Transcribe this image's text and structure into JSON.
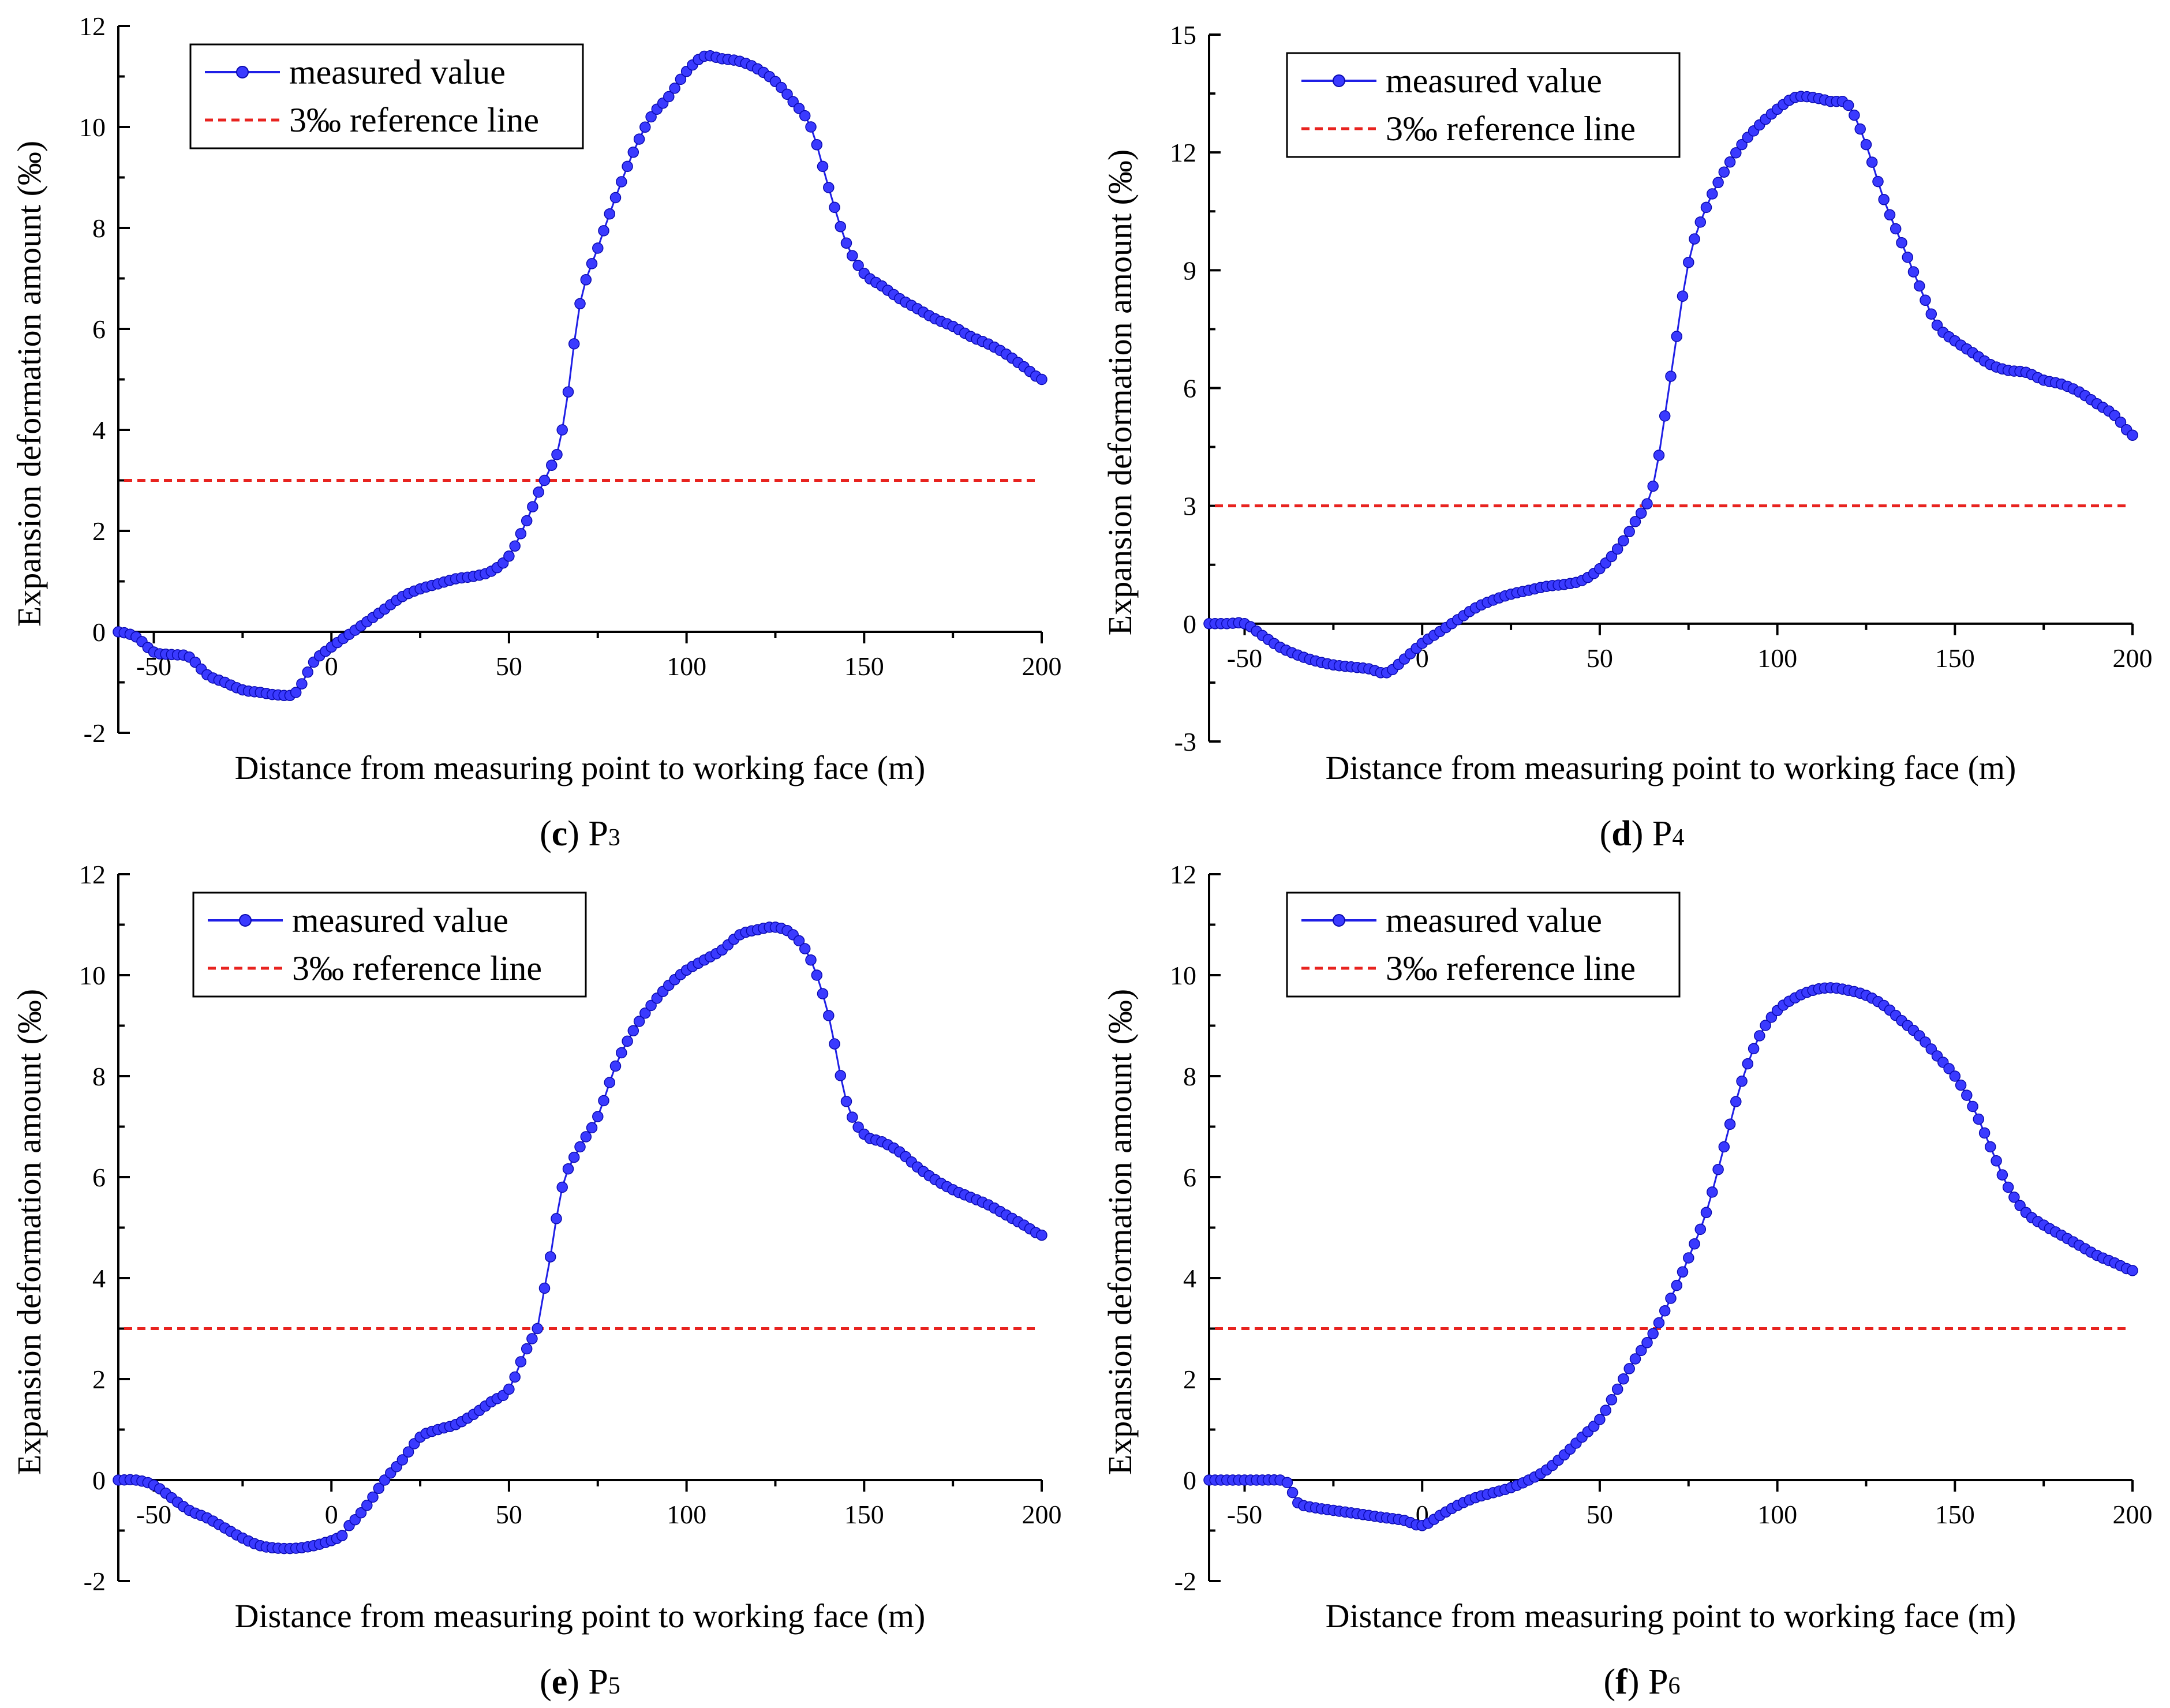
{
  "colors": {
    "series": "#1f1fe6",
    "marker": "#3a3aff",
    "marker_edge": "#0a0ab0",
    "reference": "#e8231f",
    "axis": "#000000"
  },
  "chart_data": [
    {
      "type": "line",
      "panel_letter": "c",
      "panel_point": "P",
      "panel_sub": "3",
      "xlabel": "Distance from measuring point to working face (m)",
      "ylabel": "Expansion deformation amount (‰)",
      "xlim": [
        -60,
        200
      ],
      "ylim": [
        -2,
        12
      ],
      "xticks": [
        -50,
        0,
        50,
        100,
        150,
        200
      ],
      "yticks": [
        -2,
        0,
        2,
        4,
        6,
        8,
        10,
        12
      ],
      "legend_position": "top-left",
      "series": [
        {
          "name": "measured value",
          "style": "line-marker",
          "x": [
            -60,
            -55,
            -50,
            -45,
            -40,
            -35,
            -30,
            -25,
            -20,
            -15,
            -10,
            -5,
            0,
            5,
            10,
            15,
            20,
            25,
            30,
            35,
            40,
            45,
            50,
            55,
            60,
            62,
            65,
            70,
            75,
            80,
            85,
            90,
            95,
            100,
            105,
            110,
            115,
            120,
            125,
            130,
            135,
            140,
            145,
            150,
            155,
            160,
            165,
            170,
            175,
            180,
            185,
            190,
            195,
            200
          ],
          "y": [
            0,
            -0.1,
            -0.4,
            -0.45,
            -0.5,
            -0.85,
            -1.0,
            -1.15,
            -1.2,
            -1.25,
            -1.2,
            -0.6,
            -0.3,
            -0.05,
            0.2,
            0.45,
            0.7,
            0.85,
            0.95,
            1.05,
            1.1,
            1.2,
            1.5,
            2.2,
            3.0,
            3.3,
            4.0,
            6.5,
            7.6,
            8.6,
            9.5,
            10.2,
            10.6,
            11.1,
            11.4,
            11.35,
            11.3,
            11.15,
            10.9,
            10.5,
            10.0,
            8.8,
            7.7,
            7.1,
            6.85,
            6.6,
            6.4,
            6.2,
            6.05,
            5.85,
            5.7,
            5.5,
            5.25,
            5.0
          ]
        },
        {
          "name": "3‰ reference line",
          "style": "dashed",
          "value": 3
        }
      ]
    },
    {
      "type": "line",
      "panel_letter": "d",
      "panel_point": "P",
      "panel_sub": "4",
      "xlabel": "Distance from measuring point to working face (m)",
      "ylabel": "Expansion deformation amount (‰)",
      "xlim": [
        -60,
        200
      ],
      "ylim": [
        -3,
        15
      ],
      "xticks": [
        -50,
        0,
        50,
        100,
        150,
        200
      ],
      "yticks": [
        -3,
        0,
        3,
        6,
        9,
        12,
        15
      ],
      "legend_position": "top-left",
      "series": [
        {
          "name": "measured value",
          "style": "line-marker",
          "x": [
            -60,
            -55,
            -50,
            -45,
            -40,
            -35,
            -30,
            -25,
            -20,
            -15,
            -10,
            -5,
            0,
            5,
            10,
            15,
            20,
            25,
            30,
            35,
            40,
            45,
            50,
            55,
            60,
            65,
            70,
            75,
            80,
            85,
            90,
            95,
            100,
            105,
            110,
            115,
            120,
            125,
            130,
            135,
            140,
            145,
            150,
            155,
            160,
            165,
            170,
            175,
            180,
            185,
            190,
            195,
            200
          ],
          "y": [
            0,
            0,
            0,
            -0.3,
            -0.6,
            -0.8,
            -0.95,
            -1.05,
            -1.1,
            -1.15,
            -1.25,
            -0.9,
            -0.5,
            -0.2,
            0.1,
            0.4,
            0.6,
            0.75,
            0.85,
            0.95,
            1.0,
            1.1,
            1.4,
            1.9,
            2.6,
            3.5,
            6.3,
            9.2,
            10.6,
            11.5,
            12.2,
            12.7,
            13.1,
            13.4,
            13.4,
            13.3,
            13.2,
            12.2,
            10.8,
            9.7,
            8.6,
            7.6,
            7.2,
            6.9,
            6.6,
            6.45,
            6.4,
            6.2,
            6.1,
            5.9,
            5.6,
            5.3,
            4.8
          ]
        },
        {
          "name": "3‰ reference line",
          "style": "dashed",
          "value": 3
        }
      ]
    },
    {
      "type": "line",
      "panel_letter": "e",
      "panel_point": "P",
      "panel_sub": "5",
      "xlabel": "Distance from measuring point to working face (m)",
      "ylabel": "Expansion deformation amount (‰)",
      "xlim": [
        -60,
        200
      ],
      "ylim": [
        -2,
        12
      ],
      "xticks": [
        -50,
        0,
        50,
        100,
        150,
        200
      ],
      "yticks": [
        -2,
        0,
        2,
        4,
        6,
        8,
        10,
        12
      ],
      "legend_position": "top-left",
      "series": [
        {
          "name": "measured value",
          "style": "line-marker",
          "x": [
            -60,
            -55,
            -50,
            -45,
            -40,
            -35,
            -30,
            -25,
            -20,
            -15,
            -10,
            -5,
            0,
            3,
            5,
            10,
            15,
            20,
            25,
            30,
            35,
            40,
            45,
            50,
            55,
            58,
            60,
            65,
            70,
            75,
            80,
            85,
            90,
            95,
            100,
            105,
            110,
            115,
            120,
            125,
            130,
            135,
            140,
            145,
            150,
            155,
            160,
            165,
            170,
            175,
            180,
            185,
            190,
            195,
            200
          ],
          "y": [
            0,
            0,
            -0.1,
            -0.35,
            -0.6,
            -0.75,
            -0.95,
            -1.15,
            -1.3,
            -1.35,
            -1.35,
            -1.3,
            -1.2,
            -1.1,
            -0.9,
            -0.5,
            0,
            0.4,
            0.85,
            1.0,
            1.1,
            1.3,
            1.55,
            1.8,
            2.6,
            3.0,
            3.8,
            5.8,
            6.6,
            7.2,
            8.2,
            8.9,
            9.4,
            9.8,
            10.1,
            10.3,
            10.5,
            10.8,
            10.9,
            10.95,
            10.8,
            10.3,
            9.2,
            7.5,
            6.85,
            6.7,
            6.5,
            6.2,
            5.95,
            5.75,
            5.6,
            5.45,
            5.25,
            5.05,
            4.85
          ]
        },
        {
          "name": "3‰ reference line",
          "style": "dashed",
          "value": 3
        }
      ]
    },
    {
      "type": "line",
      "panel_letter": "f",
      "panel_point": "P",
      "panel_sub": "6",
      "xlabel": "Distance from measuring point to working face (m)",
      "ylabel": "Expansion deformation amount (‰)",
      "xlim": [
        -60,
        200
      ],
      "ylim": [
        -2,
        12
      ],
      "xticks": [
        -50,
        0,
        50,
        100,
        150,
        200
      ],
      "yticks": [
        -2,
        0,
        2,
        4,
        6,
        8,
        10,
        12
      ],
      "legend_position": "top-left",
      "series": [
        {
          "name": "measured value",
          "style": "line-marker",
          "x": [
            -60,
            -55,
            -50,
            -45,
            -40,
            -38,
            -35,
            -30,
            -25,
            -20,
            -15,
            -10,
            -5,
            0,
            5,
            10,
            15,
            20,
            25,
            30,
            35,
            40,
            45,
            50,
            55,
            60,
            65,
            70,
            75,
            80,
            85,
            90,
            95,
            100,
            105,
            110,
            115,
            120,
            125,
            130,
            135,
            140,
            145,
            150,
            155,
            160,
            165,
            170,
            175,
            180,
            185,
            190,
            195,
            200
          ],
          "y": [
            0,
            0,
            0,
            0,
            0,
            -0.05,
            -0.45,
            -0.55,
            -0.6,
            -0.65,
            -0.7,
            -0.75,
            -0.8,
            -0.9,
            -0.7,
            -0.5,
            -0.35,
            -0.25,
            -0.15,
            0,
            0.2,
            0.5,
            0.85,
            1.2,
            1.8,
            2.4,
            2.9,
            3.6,
            4.4,
            5.3,
            6.6,
            7.9,
            8.8,
            9.3,
            9.55,
            9.7,
            9.75,
            9.7,
            9.6,
            9.4,
            9.1,
            8.8,
            8.4,
            8.0,
            7.4,
            6.6,
            5.8,
            5.3,
            5.05,
            4.85,
            4.65,
            4.45,
            4.3,
            4.15
          ]
        },
        {
          "name": "3‰ reference line",
          "style": "dashed",
          "value": 3
        }
      ]
    }
  ]
}
